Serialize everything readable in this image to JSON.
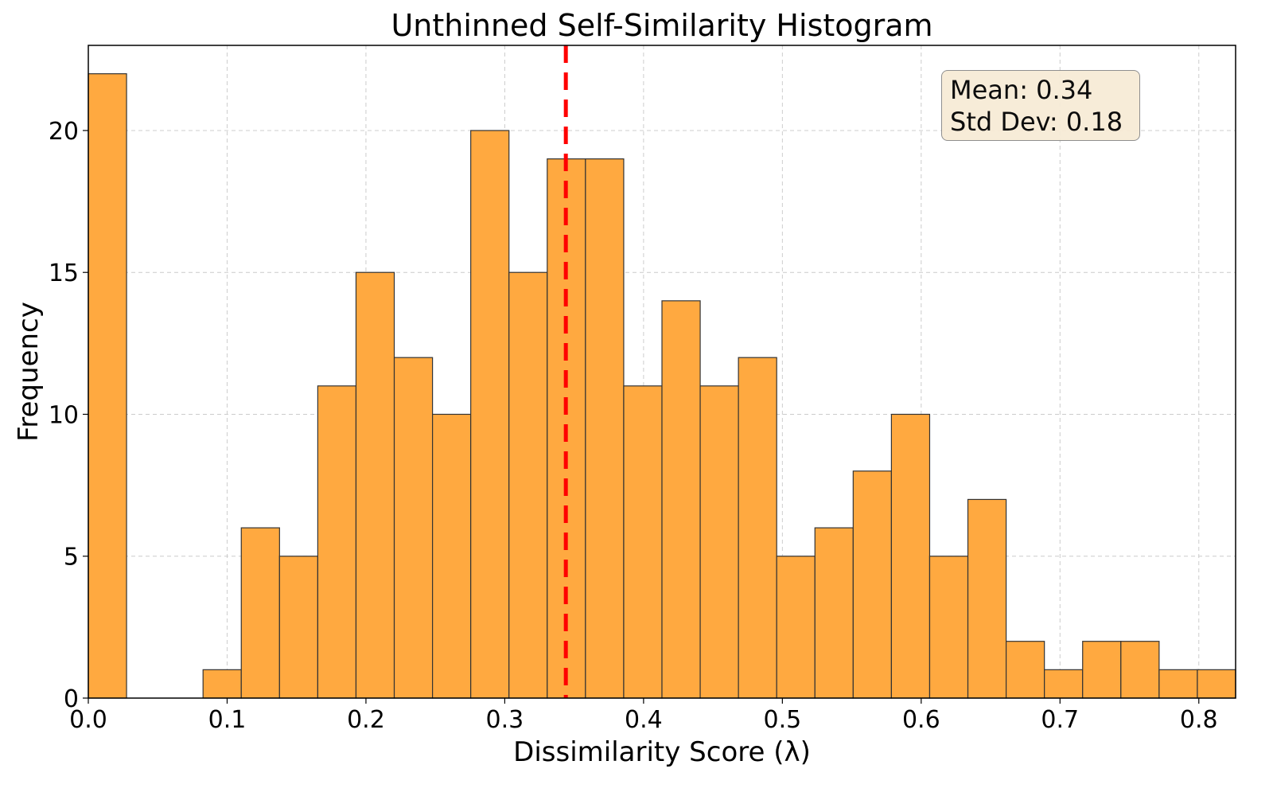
{
  "chart_data": {
    "type": "bar",
    "subtype": "histogram",
    "title": "Unthinned Self-Similarity Histogram",
    "xlabel": "Dissimilarity Score (λ)",
    "ylabel": "Frequency",
    "xlim": [
      0.0,
      0.8265
    ],
    "ylim": [
      0,
      23
    ],
    "xticks": [
      "0.0",
      "0.1",
      "0.2",
      "0.3",
      "0.4",
      "0.5",
      "0.6",
      "0.7",
      "0.8"
    ],
    "yticks": [
      "0",
      "5",
      "10",
      "15",
      "20"
    ],
    "grid": true,
    "bin_width": 0.02755,
    "bin_edges_start": 0.0,
    "values": [
      22,
      0,
      0,
      1,
      6,
      5,
      11,
      15,
      12,
      10,
      20,
      15,
      19,
      19,
      11,
      14,
      11,
      12,
      5,
      6,
      8,
      10,
      5,
      7,
      2,
      1,
      2,
      2,
      1,
      1
    ],
    "bar_color": "#ffa940",
    "edge_color": "#333333",
    "mean_line": {
      "x": 0.344,
      "color": "#ff0000",
      "style": "dashed"
    },
    "annotation": {
      "mean": "Mean: 0.34",
      "std": "Std Dev: 0.18"
    }
  }
}
